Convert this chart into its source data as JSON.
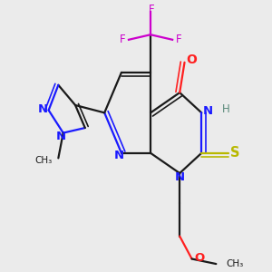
{
  "bg_color": "#ebebeb",
  "bond_color": "#1a1a1a",
  "bond_width": 1.6,
  "colors": {
    "N": "#1a1aff",
    "O": "#ff2020",
    "S": "#b8b800",
    "F": "#cc00cc",
    "H_label": "#5a8a7a",
    "C": "#1a1a1a"
  },
  "xlim": [
    -0.15,
    0.95
  ],
  "ylim": [
    0.0,
    1.05
  ],
  "figsize": [
    3.0,
    3.0
  ],
  "dpi": 100
}
